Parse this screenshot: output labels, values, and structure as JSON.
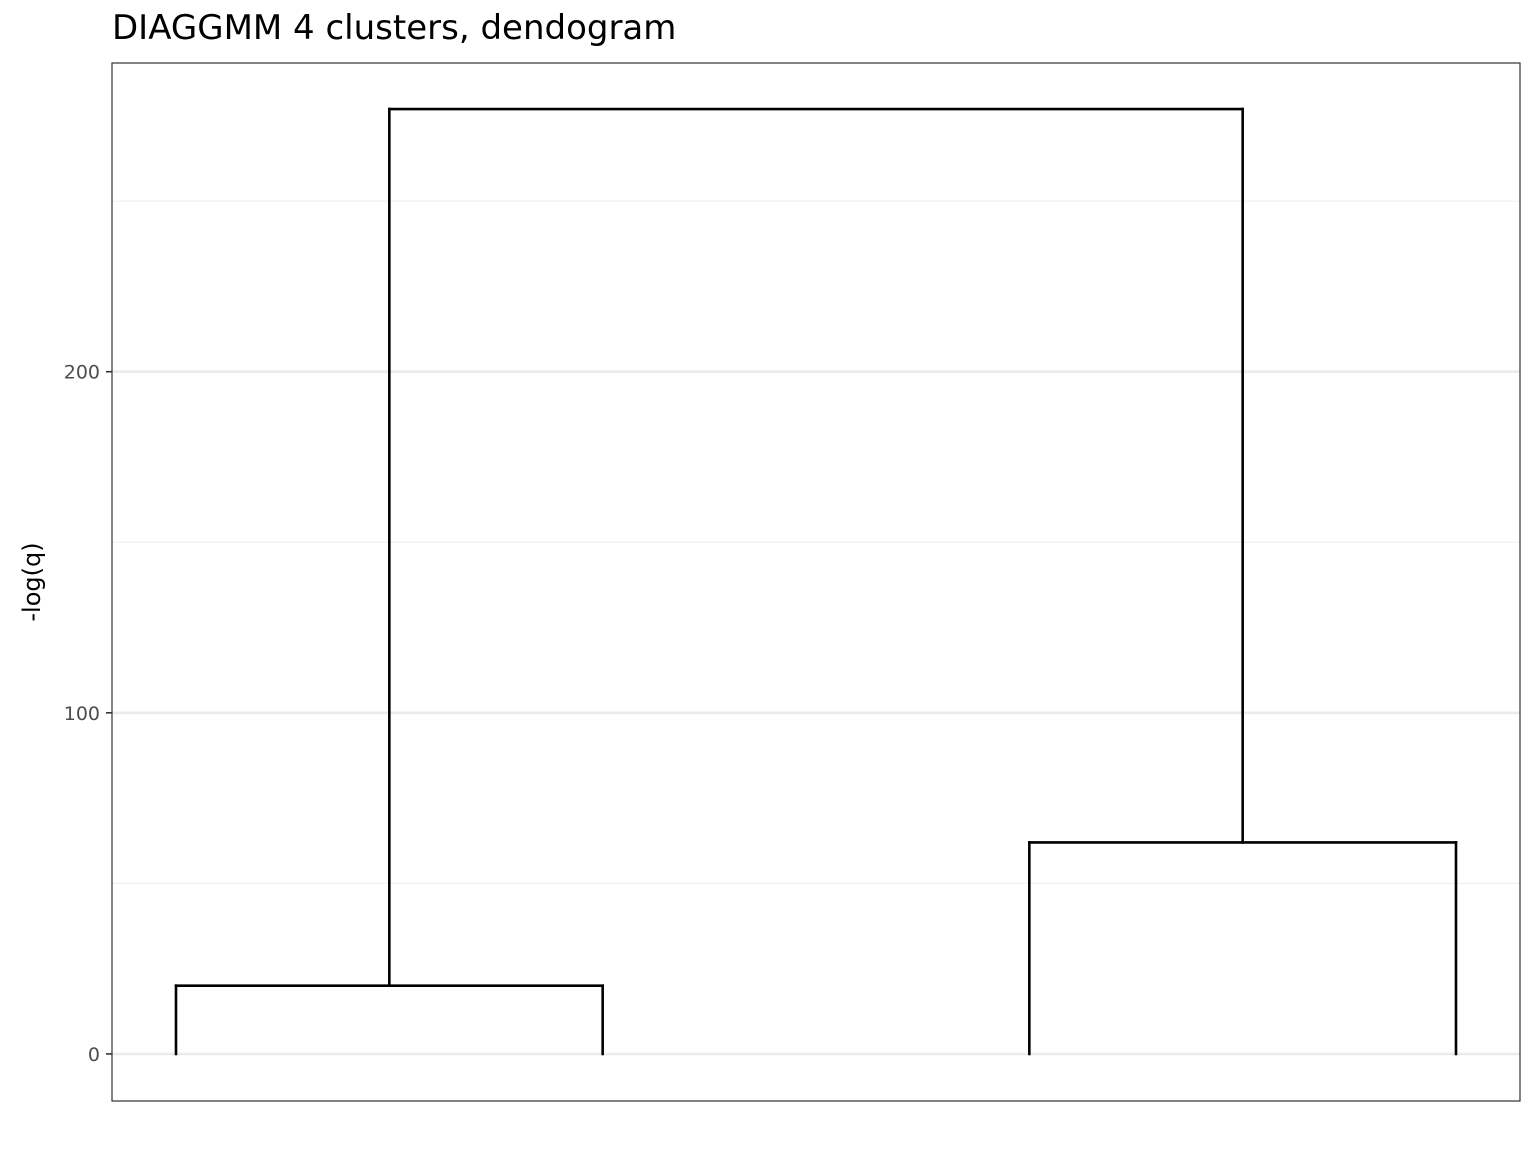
{
  "chart_data": {
    "type": "dendrogram",
    "title": "DIAGGMM 4 clusters, dendogram",
    "xlabel": "",
    "ylabel": "-log(q)",
    "ylim": [
      -13.8,
      290.5
    ],
    "yticks": [
      {
        "value": 0,
        "label": "0"
      },
      {
        "value": 100,
        "label": "100"
      },
      {
        "value": 200,
        "label": "200"
      }
    ],
    "minor_gridlines": [
      50,
      150,
      250
    ],
    "grid": true,
    "leaves": [
      1,
      2,
      3,
      4
    ],
    "xlim": [
      0.85,
      4.15
    ],
    "segments": [
      {
        "x": [
          1,
          1
        ],
        "y": [
          0,
          20
        ]
      },
      {
        "x": [
          1,
          2
        ],
        "y": [
          20,
          20
        ]
      },
      {
        "x": [
          2,
          2
        ],
        "y": [
          0,
          20
        ]
      },
      {
        "x": [
          3,
          3
        ],
        "y": [
          0,
          62
        ]
      },
      {
        "x": [
          3,
          4
        ],
        "y": [
          62,
          62
        ]
      },
      {
        "x": [
          4,
          4
        ],
        "y": [
          0,
          62
        ]
      },
      {
        "x": [
          1.5,
          1.5
        ],
        "y": [
          20,
          277
        ]
      },
      {
        "x": [
          1.5,
          3.5
        ],
        "y": [
          277,
          277
        ]
      },
      {
        "x": [
          3.5,
          3.5
        ],
        "y": [
          62,
          277
        ]
      }
    ],
    "colors": {
      "line": "#000000",
      "grid_major": "#ebebeb",
      "grid_minor": "#f2f2f2",
      "panel_border": "#333333",
      "tick_text": "#4d4d4d"
    }
  }
}
